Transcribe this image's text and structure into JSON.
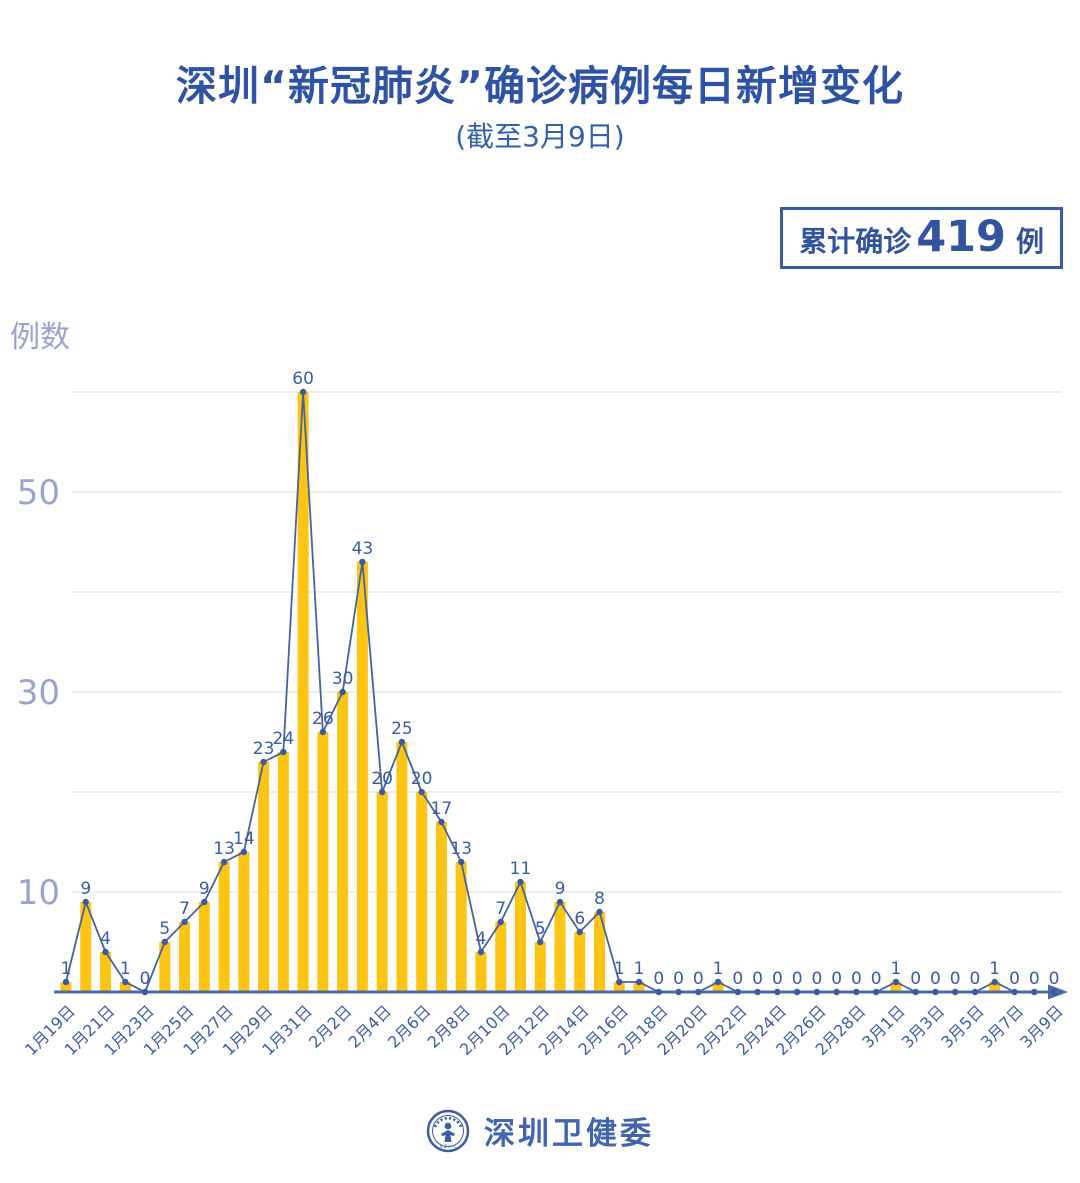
{
  "title": "深圳“新冠肺炎”确诊病例每日新增变化",
  "subtitle": "(截至3月9日)",
  "badge": {
    "prefix": "累计确诊",
    "count": "419",
    "suffix": "例"
  },
  "footer": {
    "org": "深圳卫健委"
  },
  "chart_data": {
    "type": "bar",
    "overlay": "line",
    "title": "深圳“新冠肺炎”确诊病例每日新增变化",
    "subtitle": "(截至3月9日)",
    "ylabel": "例数",
    "xlabel": "",
    "ylim": [
      0,
      62
    ],
    "y_gridlines": [
      10,
      20,
      30,
      40,
      50,
      60
    ],
    "y_tick_labels": [
      10,
      30,
      50
    ],
    "x_label_step": 2,
    "grid": true,
    "legend": "none",
    "cumulative_total": 419,
    "categories": [
      "1月19日",
      "1月20日",
      "1月21日",
      "1月22日",
      "1月23日",
      "1月24日",
      "1月25日",
      "1月26日",
      "1月27日",
      "1月28日",
      "1月29日",
      "1月30日",
      "1月31日",
      "2月1日",
      "2月2日",
      "2月3日",
      "2月4日",
      "2月5日",
      "2月6日",
      "2月7日",
      "2月8日",
      "2月9日",
      "2月10日",
      "2月11日",
      "2月12日",
      "2月13日",
      "2月14日",
      "2月15日",
      "2月16日",
      "2月17日",
      "2月18日",
      "2月19日",
      "2月20日",
      "2月21日",
      "2月22日",
      "2月23日",
      "2月24日",
      "2月25日",
      "2月26日",
      "2月27日",
      "2月28日",
      "2月29日",
      "3月1日",
      "3月2日",
      "3月3日",
      "3月4日",
      "3月5日",
      "3月6日",
      "3月7日",
      "3月8日",
      "3月9日"
    ],
    "values": [
      1,
      9,
      4,
      1,
      0,
      5,
      7,
      9,
      13,
      14,
      23,
      24,
      60,
      26,
      30,
      43,
      20,
      25,
      20,
      17,
      13,
      4,
      7,
      11,
      5,
      9,
      6,
      8,
      1,
      1,
      0,
      0,
      0,
      1,
      0,
      0,
      0,
      0,
      0,
      0,
      0,
      0,
      1,
      0,
      0,
      0,
      0,
      1,
      0,
      0,
      0
    ],
    "colors": {
      "bar": "#fcc513",
      "line": "#44639f",
      "marker": "#3d5a9e",
      "value_label": "#3a5ba7",
      "date_label": "#3e5ca7",
      "grid": "#e7e7e7",
      "axis": "#4a69a8",
      "axis_text": "#9ba5cc",
      "title": "#2e53a4"
    }
  }
}
